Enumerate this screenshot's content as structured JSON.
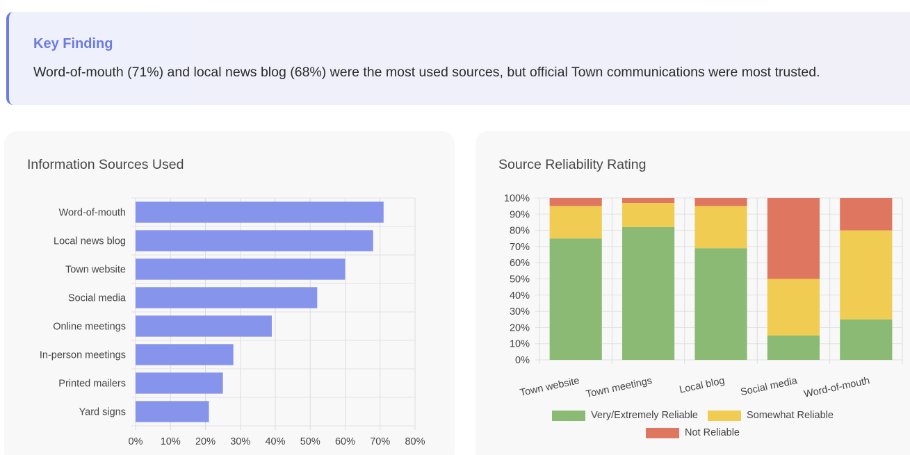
{
  "finding": {
    "title": "Key Finding",
    "text": "Word-of-mouth (71%) and local news blog (68%) were the most used sources, but official Town communications were most trusted."
  },
  "colors": {
    "accent": "#6b7be0",
    "bar": "#8794ec",
    "green": "#8aba73",
    "yellow": "#f0cc52",
    "red": "#df7660"
  },
  "chart_data": [
    {
      "type": "bar",
      "orientation": "horizontal",
      "title": "Information Sources Used",
      "categories": [
        "Word-of-mouth",
        "Local news blog",
        "Town website",
        "Social media",
        "Online meetings",
        "In-person meetings",
        "Printed mailers",
        "Yard signs"
      ],
      "values": [
        71,
        68,
        60,
        52,
        39,
        28,
        25,
        21
      ],
      "xlim": [
        0,
        80
      ],
      "xticks": [
        "0%",
        "10%",
        "20%",
        "30%",
        "40%",
        "50%",
        "60%",
        "70%",
        "80%"
      ],
      "grid": true
    },
    {
      "type": "bar",
      "stacked": true,
      "title": "Source Reliability Rating",
      "categories": [
        "Town website",
        "Town meetings",
        "Local blog",
        "Social media",
        "Word-of-mouth"
      ],
      "series": [
        {
          "name": "Very/Extremely Reliable",
          "color": "#8aba73",
          "values": [
            75,
            82,
            69,
            15,
            25
          ]
        },
        {
          "name": "Somewhat Reliable",
          "color": "#f0cc52",
          "values": [
            20,
            15,
            26,
            35,
            55
          ]
        },
        {
          "name": "Not Reliable",
          "color": "#df7660",
          "values": [
            5,
            3,
            5,
            50,
            20
          ]
        }
      ],
      "ylim": [
        0,
        100
      ],
      "yticks": [
        "0%",
        "10%",
        "20%",
        "30%",
        "40%",
        "50%",
        "60%",
        "70%",
        "80%",
        "90%",
        "100%"
      ],
      "legend": "bottom",
      "grid": true
    }
  ]
}
